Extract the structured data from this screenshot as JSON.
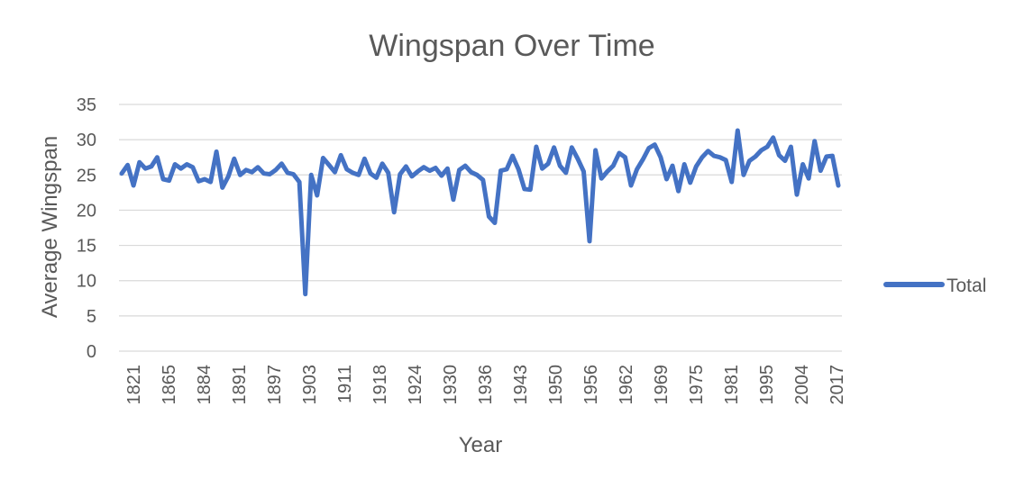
{
  "chart_data": {
    "type": "line",
    "title": "Wingspan Over Time",
    "xlabel": "Year",
    "ylabel": "Average Wingspan",
    "ylim": [
      0,
      35
    ],
    "yticks": [
      "0",
      "5",
      "10",
      "15",
      "20",
      "25",
      "30",
      "35"
    ],
    "xticks": [
      "1821",
      "1865",
      "1884",
      "1891",
      "1897",
      "1903",
      "1911",
      "1918",
      "1924",
      "1930",
      "1936",
      "1943",
      "1950",
      "1956",
      "1962",
      "1969",
      "1975",
      "1981",
      "1995",
      "2004",
      "2017"
    ],
    "grid": "horizontal",
    "legend_position": "right",
    "series": [
      {
        "name": "Total",
        "color": "#4472C4",
        "values": [
          25.2,
          26.4,
          23.5,
          26.8,
          25.9,
          26.2,
          27.5,
          24.4,
          24.2,
          26.5,
          25.9,
          26.5,
          26.1,
          24.1,
          24.4,
          24.0,
          28.3,
          23.2,
          24.8,
          27.3,
          25.0,
          25.7,
          25.4,
          26.1,
          25.2,
          25.1,
          25.7,
          26.6,
          25.3,
          25.1,
          24.0,
          8.1,
          25.0,
          22.1,
          27.4,
          26.4,
          25.4,
          27.8,
          25.8,
          25.3,
          25.0,
          27.3,
          25.2,
          24.6,
          26.6,
          25.3,
          19.7,
          25.1,
          26.2,
          24.8,
          25.5,
          26.1,
          25.6,
          26.0,
          24.9,
          25.9,
          21.5,
          25.7,
          26.3,
          25.4,
          25.0,
          24.3,
          19.1,
          18.2,
          25.6,
          25.8,
          27.7,
          25.8,
          23.0,
          22.9,
          29.0,
          25.9,
          26.6,
          28.9,
          26.3,
          25.3,
          28.9,
          27.3,
          25.5,
          15.6,
          28.5,
          24.5,
          25.5,
          26.3,
          28.1,
          27.5,
          23.5,
          25.8,
          27.2,
          28.8,
          29.3,
          27.5,
          24.4,
          26.3,
          22.7,
          26.5,
          23.9,
          26.2,
          27.5,
          28.4,
          27.7,
          27.5,
          27.1,
          24.0,
          31.3,
          25.0,
          27.0,
          27.6,
          28.5,
          29.0,
          30.3,
          27.8,
          27.0,
          29.0,
          22.2,
          26.5,
          24.5,
          29.8,
          25.6,
          27.6,
          27.7,
          23.5
        ]
      }
    ]
  }
}
